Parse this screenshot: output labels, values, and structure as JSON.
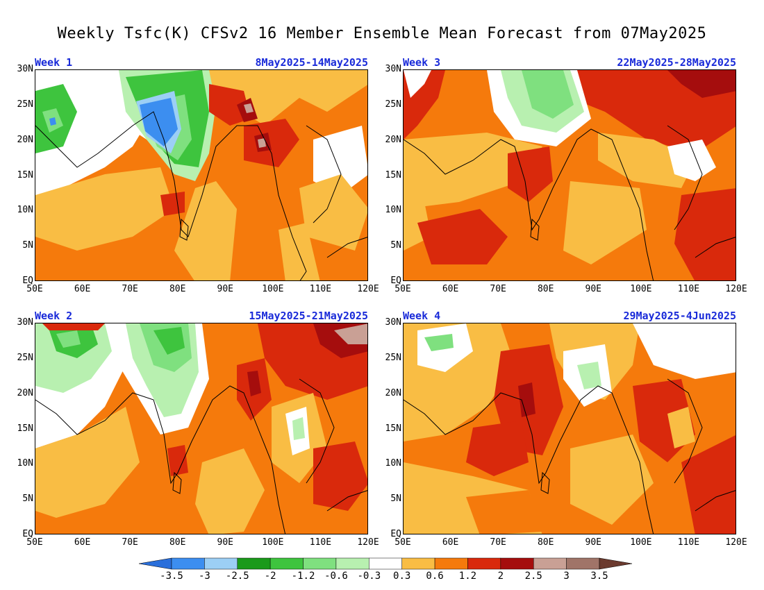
{
  "title": "Weekly Tsfc(K) CFSv2 16 Member Ensemble Mean Forecast from 07May2025",
  "axes": {
    "lat_labels": [
      "30N",
      "25N",
      "20N",
      "15N",
      "10N",
      "5N",
      "EQ"
    ],
    "lon_labels": [
      "50E",
      "60E",
      "70E",
      "80E",
      "90E",
      "100E",
      "110E",
      "120E"
    ],
    "lat_range": [
      0,
      30
    ],
    "lon_range": [
      50,
      120
    ]
  },
  "panels": [
    {
      "id": "week1",
      "week": "Week 1",
      "dates": "8May2025-14May2025"
    },
    {
      "id": "week3",
      "week": "Week 3",
      "dates": "22May2025-28May2025"
    },
    {
      "id": "week2",
      "week": "Week 2",
      "dates": "15May2025-21May2025"
    },
    {
      "id": "week4",
      "week": "Week 4",
      "dates": "29May2025-4Jun2025"
    }
  ],
  "colorbar": {
    "labels": [
      "-3.5",
      "-3",
      "-2.5",
      "-2",
      "-1.2",
      "-0.6",
      "-0.3",
      "0.3",
      "0.6",
      "1.2",
      "2",
      "2.5",
      "3",
      "3.5"
    ],
    "colors": [
      "#2a6fdb",
      "#3c8ef0",
      "#9ccff5",
      "#1a9a1a",
      "#3ec43e",
      "#7fe07f",
      "#b8f0b0",
      "#ffffff",
      "#f9bd44",
      "#f57a0c",
      "#d9290c",
      "#a50d0d",
      "#c9a095",
      "#a07468",
      "#6b3a2e"
    ]
  }
}
